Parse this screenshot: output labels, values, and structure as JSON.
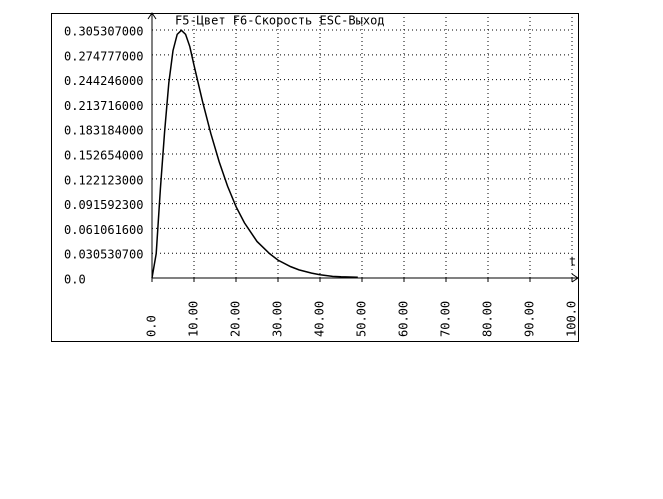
{
  "chart_data": {
    "type": "line",
    "header": "F5-Цвет  F6-Скорость  ESC-Выход",
    "x_label": "t",
    "x": [
      0,
      1,
      2,
      3,
      4,
      5,
      6,
      7,
      8,
      9,
      10,
      12,
      14,
      16,
      18,
      20,
      22,
      25,
      28,
      30,
      33,
      35,
      38,
      40,
      43,
      45,
      49
    ],
    "values": [
      0,
      0.03,
      0.11,
      0.18,
      0.24,
      0.28,
      0.3,
      0.305,
      0.3,
      0.285,
      0.262,
      0.218,
      0.178,
      0.143,
      0.113,
      0.088,
      0.068,
      0.045,
      0.03,
      0.022,
      0.014,
      0.01,
      0.006,
      0.004,
      0.002,
      0.0015,
      0.001
    ],
    "color": "#000000",
    "xlim": [
      0,
      100
    ],
    "ylim": [
      0,
      0.3263
    ],
    "xticks": [
      {
        "value": 0,
        "label": "0.0"
      },
      {
        "value": 10,
        "label": "10.00"
      },
      {
        "value": 20,
        "label": "20.00"
      },
      {
        "value": 30,
        "label": "30.00"
      },
      {
        "value": 40,
        "label": "40.00"
      },
      {
        "value": 50,
        "label": "50.00"
      },
      {
        "value": 60,
        "label": "60.00"
      },
      {
        "value": 70,
        "label": "70.00"
      },
      {
        "value": 80,
        "label": "80.00"
      },
      {
        "value": 90,
        "label": "90.00"
      },
      {
        "value": 100,
        "label": "100.0"
      }
    ],
    "yticks": [
      {
        "value": 0,
        "label": "0.0"
      },
      {
        "value": 0.0305307,
        "label": "0.030530700"
      },
      {
        "value": 0.0610616,
        "label": "0.061061600"
      },
      {
        "value": 0.0915923,
        "label": "0.091592300"
      },
      {
        "value": 0.122123,
        "label": "0.122123000"
      },
      {
        "value": 0.152654,
        "label": "0.152654000"
      },
      {
        "value": 0.183184,
        "label": "0.183184000"
      },
      {
        "value": 0.213716,
        "label": "0.213716000"
      },
      {
        "value": 0.244246,
        "label": "0.244246000"
      },
      {
        "value": 0.274777,
        "label": "0.274777000"
      },
      {
        "value": 0.305307,
        "label": "0.305307000"
      }
    ],
    "grid": true
  }
}
